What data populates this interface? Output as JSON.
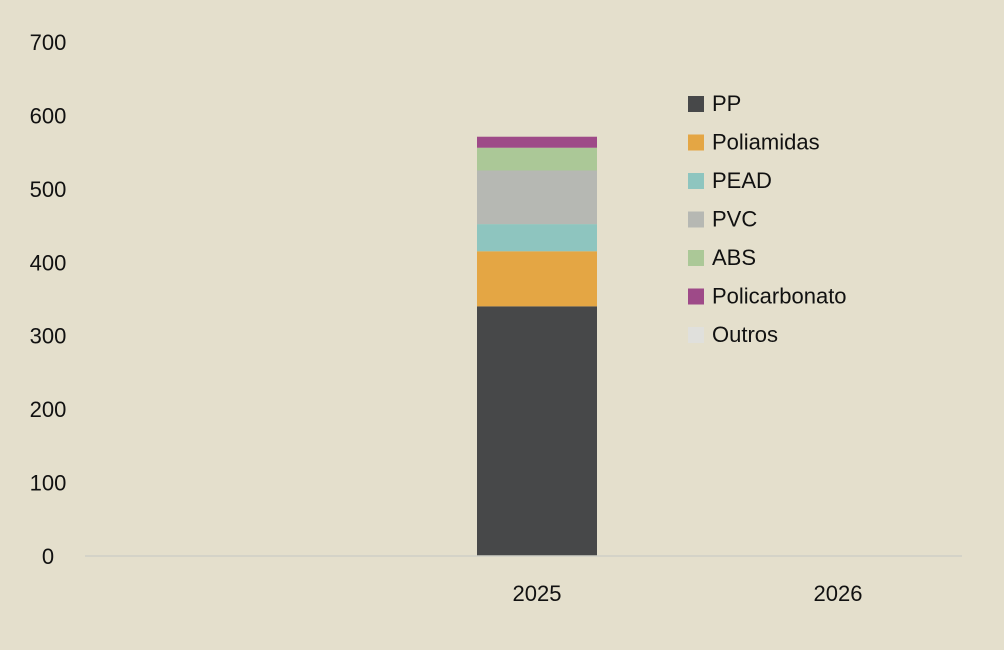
{
  "chart_data": {
    "type": "bar",
    "stacked": true,
    "categories": [
      "2025",
      "2026"
    ],
    "series": [
      {
        "name": "PP",
        "color": "#474849",
        "values": [
          340,
          0
        ]
      },
      {
        "name": "Poliamidas",
        "color": "#e4a644",
        "values": [
          75,
          0
        ]
      },
      {
        "name": "PEAD",
        "color": "#8ec5bf",
        "values": [
          37,
          0
        ]
      },
      {
        "name": "PVC",
        "color": "#b6b8b3",
        "values": [
          73,
          0
        ]
      },
      {
        "name": "ABS",
        "color": "#abc897",
        "values": [
          31,
          0
        ]
      },
      {
        "name": "Policarbonato",
        "color": "#9e4a88",
        "values": [
          15,
          0
        ]
      },
      {
        "name": "Outros",
        "color": "#e0e0dc",
        "values": [
          0,
          0
        ]
      }
    ],
    "ylim": [
      0,
      700
    ],
    "yticks": [
      0,
      100,
      200,
      300,
      400,
      500,
      600,
      700
    ],
    "title": "",
    "xlabel": "",
    "ylabel": "",
    "legend_position": "top-right",
    "grid": false,
    "baseline_color": "#cfcfc6"
  }
}
